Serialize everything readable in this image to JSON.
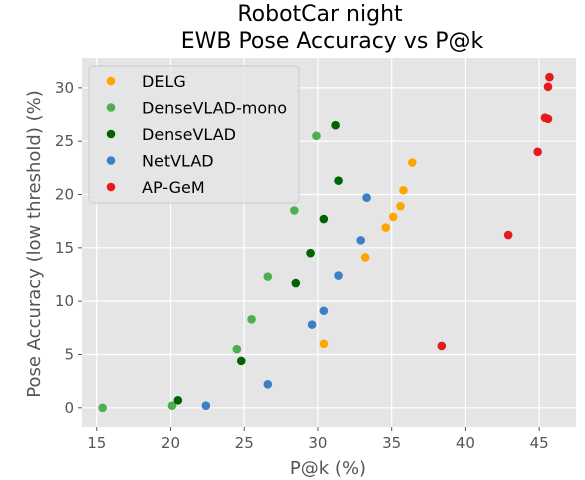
{
  "chart_data": {
    "type": "scatter",
    "title": "RobotCar night",
    "subtitle": "EWB Pose Accuracy vs P@k",
    "xlabel": "P@k (%)",
    "ylabel": "Pose Accuracy (low threshold) (%)",
    "xlim": [
      14,
      47.5
    ],
    "ylim": [
      -1.8,
      32.8
    ],
    "xticks": [
      15,
      20,
      25,
      30,
      35,
      40,
      45
    ],
    "yticks": [
      0,
      5,
      10,
      15,
      20,
      25,
      30
    ],
    "grid": true,
    "legend_position": "top-left",
    "background": "#e5e5e5",
    "series": [
      {
        "name": "DELG",
        "color": "#ffa500",
        "points": [
          [
            36.4,
            23.0
          ],
          [
            35.8,
            20.4
          ],
          [
            35.6,
            18.9
          ],
          [
            35.1,
            17.9
          ],
          [
            34.6,
            16.9
          ],
          [
            33.2,
            14.1
          ],
          [
            30.4,
            6.0
          ]
        ]
      },
      {
        "name": "DenseVLAD-mono",
        "color": "#4caf50",
        "points": [
          [
            29.9,
            25.5
          ],
          [
            28.4,
            18.5
          ],
          [
            26.6,
            12.3
          ],
          [
            25.5,
            8.3
          ],
          [
            24.5,
            5.5
          ],
          [
            20.1,
            0.2
          ],
          [
            15.4,
            0.0
          ]
        ]
      },
      {
        "name": "DenseVLAD",
        "color": "#006400",
        "points": [
          [
            31.2,
            26.5
          ],
          [
            31.4,
            21.3
          ],
          [
            30.4,
            17.7
          ],
          [
            29.5,
            14.5
          ],
          [
            28.5,
            11.7
          ],
          [
            24.8,
            4.4
          ],
          [
            20.5,
            0.7
          ]
        ]
      },
      {
        "name": "NetVLAD",
        "color": "#3b7fc4",
        "points": [
          [
            33.3,
            19.7
          ],
          [
            32.9,
            15.7
          ],
          [
            31.4,
            12.4
          ],
          [
            30.4,
            9.1
          ],
          [
            29.6,
            7.8
          ],
          [
            26.6,
            2.2
          ],
          [
            22.4,
            0.2
          ]
        ]
      },
      {
        "name": "AP-GeM",
        "color": "#e41a1c",
        "points": [
          [
            45.7,
            31.0
          ],
          [
            45.6,
            30.1
          ],
          [
            45.4,
            27.2
          ],
          [
            45.6,
            27.1
          ],
          [
            44.9,
            24.0
          ],
          [
            42.9,
            16.2
          ],
          [
            38.4,
            5.8
          ]
        ]
      }
    ]
  }
}
